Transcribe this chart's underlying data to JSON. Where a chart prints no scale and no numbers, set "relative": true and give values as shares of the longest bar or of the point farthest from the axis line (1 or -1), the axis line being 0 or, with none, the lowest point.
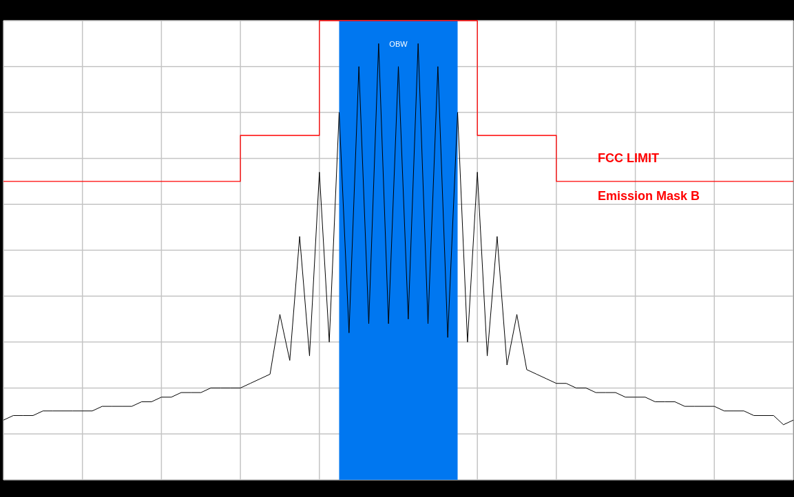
{
  "chart_data": {
    "type": "line",
    "relative": true,
    "grid": true,
    "tick_labels": false,
    "categories": [
      null,
      null,
      null,
      null,
      null,
      null,
      null,
      null,
      null,
      null,
      null,
      null,
      null,
      null,
      null,
      null,
      null,
      null,
      null,
      null,
      null,
      null,
      null,
      null,
      null,
      null,
      null,
      null,
      null,
      null,
      null,
      null,
      null,
      null,
      null,
      null,
      null,
      null,
      null,
      null,
      null,
      null,
      null,
      null,
      null,
      null,
      null,
      null,
      null,
      null,
      null,
      null,
      null,
      null,
      null,
      null,
      null,
      null,
      null,
      null,
      null,
      null,
      null,
      null,
      null,
      null,
      null,
      null,
      null,
      null,
      null,
      null,
      null,
      null,
      null,
      null,
      null,
      null,
      null,
      null,
      null
    ],
    "series": [
      {
        "type": "step",
        "color": "#ff0000",
        "values": [
          0.65,
          0.65,
          0.65,
          0.65,
          0.65,
          0.65,
          0.65,
          0.65,
          0.65,
          0.65,
          0.65,
          0.65,
          0.65,
          0.65,
          0.65,
          0.65,
          0.65,
          0.65,
          0.65,
          0.65,
          0.65,
          0.65,
          0.65,
          0.65,
          0.75,
          0.75,
          0.75,
          0.75,
          0.75,
          0.75,
          0.75,
          0.75,
          1,
          1,
          1,
          1,
          1,
          1,
          1,
          1,
          1,
          1,
          1,
          1,
          1,
          1,
          1,
          1,
          0.75,
          0.75,
          0.75,
          0.75,
          0.75,
          0.75,
          0.75,
          0.75,
          0.65,
          0.65,
          0.65,
          0.65,
          0.65,
          0.65,
          0.65,
          0.65,
          0.65,
          0.65,
          0.65,
          0.65,
          0.65,
          0.65,
          0.65,
          0.65,
          0.65,
          0.65,
          0.65,
          0.65,
          0.65,
          0.65,
          0.65,
          0.65,
          0.65
        ]
      },
      {
        "color": "#000000",
        "values": [
          0.13,
          0.14,
          0.14,
          0.14,
          0.15,
          0.15,
          0.15,
          0.15,
          0.15,
          0.15,
          0.16,
          0.16,
          0.16,
          0.16,
          0.17,
          0.17,
          0.18,
          0.18,
          0.19,
          0.19,
          0.19,
          0.2,
          0.2,
          0.2,
          0.2,
          0.21,
          0.22,
          0.23,
          0.36,
          0.26,
          0.53,
          0.27,
          0.67,
          0.3,
          0.8,
          0.32,
          0.9,
          0.34,
          0.95,
          0.34,
          0.9,
          0.35,
          0.95,
          0.34,
          0.9,
          0.31,
          0.8,
          0.3,
          0.67,
          0.27,
          0.53,
          0.25,
          0.36,
          0.24,
          0.23,
          0.22,
          0.21,
          0.21,
          0.2,
          0.2,
          0.19,
          0.19,
          0.19,
          0.18,
          0.18,
          0.18,
          0.17,
          0.17,
          0.17,
          0.16,
          0.16,
          0.16,
          0.16,
          0.15,
          0.15,
          0.15,
          0.14,
          0.14,
          0.14,
          0.12,
          0.13
        ]
      }
    ],
    "annotations": [
      "OBW",
      "FCC LIMIT",
      "Emission Mask B"
    ]
  }
}
